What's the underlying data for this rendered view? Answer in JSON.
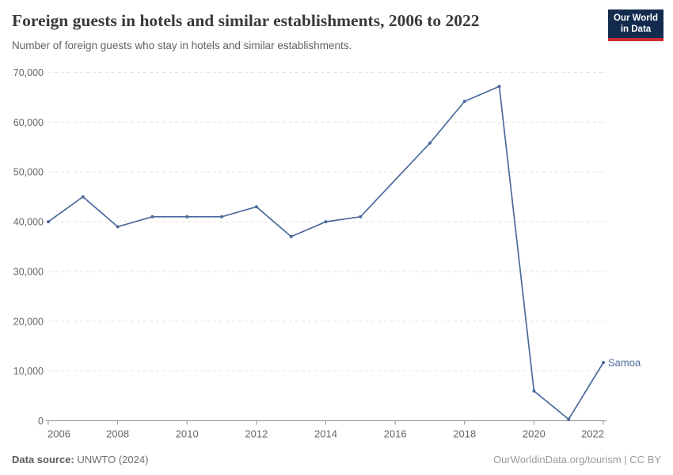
{
  "header": {
    "title": "Foreign guests in hotels and similar establishments, 2006 to 2022",
    "subtitle": "Number of foreign guests who stay in hotels and similar establishments."
  },
  "logo": {
    "line1": "Our World",
    "line2": "in Data",
    "bg_color": "#132c4e",
    "bar_color": "#cf2a33"
  },
  "footer": {
    "source_label": "Data source:",
    "source_value": " UNWTO (2024)",
    "link": "OurWorldinData.org/tourism",
    "separator": " | ",
    "license": "CC BY"
  },
  "chart_data": {
    "type": "line",
    "title": "Foreign guests in hotels and similar establishments, 2006 to 2022",
    "xlabel": "",
    "ylabel": "",
    "xlim": [
      2006,
      2022
    ],
    "ylim": [
      0,
      70000
    ],
    "grid": "horizontal-dashed",
    "legend_position": "end-of-line",
    "xticks": [
      2006,
      2008,
      2010,
      2012,
      2014,
      2016,
      2018,
      2020,
      2022
    ],
    "yticks": [
      {
        "value": 0,
        "label": "0"
      },
      {
        "value": 10000,
        "label": "10,000"
      },
      {
        "value": 20000,
        "label": "20,000"
      },
      {
        "value": 30000,
        "label": "30,000"
      },
      {
        "value": 40000,
        "label": "40,000"
      },
      {
        "value": 50000,
        "label": "50,000"
      },
      {
        "value": 60000,
        "label": "60,000"
      },
      {
        "value": 70000,
        "label": "70,000"
      }
    ],
    "series": [
      {
        "name": "Samoa",
        "color": "#4C6A9C",
        "points": [
          {
            "x": 2006,
            "y": 40000
          },
          {
            "x": 2007,
            "y": 45000
          },
          {
            "x": 2008,
            "y": 39000
          },
          {
            "x": 2009,
            "y": 41000
          },
          {
            "x": 2010,
            "y": 41000
          },
          {
            "x": 2011,
            "y": 41000
          },
          {
            "x": 2012,
            "y": 43000
          },
          {
            "x": 2013,
            "y": 37000
          },
          {
            "x": 2014,
            "y": 40000
          },
          {
            "x": 2015,
            "y": 41000
          },
          {
            "x": 2017,
            "y": 55800
          },
          {
            "x": 2018,
            "y": 64200
          },
          {
            "x": 2019,
            "y": 67200
          },
          {
            "x": 2020,
            "y": 6000
          },
          {
            "x": 2021,
            "y": 300
          },
          {
            "x": 2022,
            "y": 11700
          }
        ]
      }
    ]
  }
}
